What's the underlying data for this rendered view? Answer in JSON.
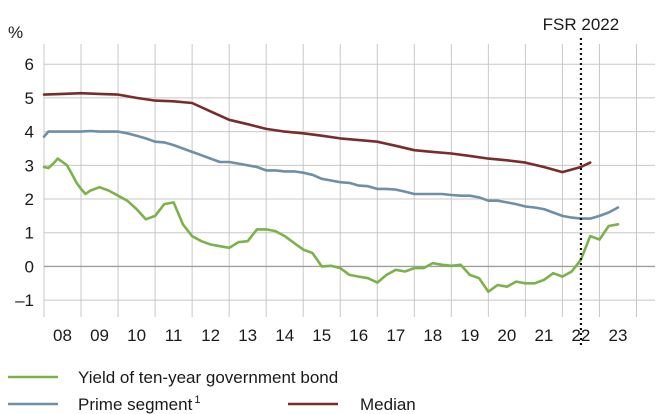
{
  "chart_data": {
    "type": "line",
    "unit_label": "%",
    "annotation": "FSR 2022",
    "annotation_x": 2022.0,
    "xlim": [
      2007.5,
      2024.0
    ],
    "ylim": [
      -1.5,
      6.6
    ],
    "yticks": [
      -1,
      0,
      1,
      2,
      3,
      4,
      5,
      6
    ],
    "ytick_labels": [
      "–1",
      "0",
      "1",
      "2",
      "3",
      "4",
      "5",
      "6"
    ],
    "xticks": [
      2008,
      2009,
      2010,
      2011,
      2012,
      2013,
      2014,
      2015,
      2016,
      2017,
      2018,
      2019,
      2020,
      2021,
      2022,
      2023
    ],
    "xtick_labels": [
      "08",
      "09",
      "10",
      "11",
      "12",
      "13",
      "14",
      "15",
      "16",
      "17",
      "18",
      "19",
      "20",
      "21",
      "22",
      "23"
    ],
    "grid": true,
    "legend_position": "bottom",
    "series": [
      {
        "key": "yield",
        "name": "Yield of ten-year government bond",
        "color": "#7bb24a",
        "x": [
          2007.5,
          2007.62,
          2007.75,
          2007.87,
          2008.0,
          2008.12,
          2008.25,
          2008.37,
          2008.5,
          2008.62,
          2008.75,
          2009.0,
          2009.25,
          2009.5,
          2009.75,
          2010.0,
          2010.25,
          2010.5,
          2010.75,
          2011.0,
          2011.25,
          2011.5,
          2011.75,
          2012.0,
          2012.25,
          2012.5,
          2012.75,
          2013.0,
          2013.25,
          2013.5,
          2013.75,
          2014.0,
          2014.25,
          2014.5,
          2014.75,
          2015.0,
          2015.25,
          2015.5,
          2015.75,
          2016.0,
          2016.25,
          2016.5,
          2016.75,
          2017.0,
          2017.25,
          2017.5,
          2017.75,
          2018.0,
          2018.25,
          2018.5,
          2018.75,
          2019.0,
          2019.25,
          2019.5,
          2019.75,
          2020.0,
          2020.25,
          2020.5,
          2020.75,
          2021.0,
          2021.25,
          2021.5,
          2021.75,
          2022.0,
          2022.25,
          2022.5,
          2022.75,
          2023.0
        ],
        "values": [
          2.95,
          2.92,
          3.05,
          3.2,
          3.1,
          3.0,
          2.75,
          2.5,
          2.3,
          2.15,
          2.25,
          2.35,
          2.25,
          2.1,
          1.95,
          1.7,
          1.4,
          1.5,
          1.85,
          1.9,
          1.25,
          0.9,
          0.75,
          0.65,
          0.6,
          0.55,
          0.72,
          0.75,
          1.1,
          1.1,
          1.05,
          0.9,
          0.7,
          0.5,
          0.4,
          0.0,
          0.02,
          -0.05,
          -0.25,
          -0.3,
          -0.35,
          -0.48,
          -0.25,
          -0.1,
          -0.15,
          -0.05,
          -0.05,
          0.1,
          0.05,
          0.02,
          0.05,
          -0.25,
          -0.35,
          -0.75,
          -0.55,
          -0.6,
          -0.45,
          -0.5,
          -0.5,
          -0.4,
          -0.2,
          -0.3,
          -0.15,
          0.2,
          0.9,
          0.8,
          1.2,
          1.25
        ]
      },
      {
        "key": "prime",
        "name": "Prime segment",
        "name_sup": "1",
        "color": "#6f8fa6",
        "x": [
          2007.5,
          2007.62,
          2008.0,
          2008.5,
          2008.75,
          2009.0,
          2009.25,
          2009.5,
          2009.75,
          2010.0,
          2010.25,
          2010.5,
          2010.75,
          2011.0,
          2011.25,
          2011.5,
          2011.75,
          2012.0,
          2012.25,
          2012.5,
          2012.75,
          2013.0,
          2013.25,
          2013.5,
          2013.75,
          2014.0,
          2014.25,
          2014.5,
          2014.75,
          2015.0,
          2015.25,
          2015.5,
          2015.75,
          2016.0,
          2016.25,
          2016.5,
          2016.75,
          2017.0,
          2017.25,
          2017.5,
          2017.75,
          2018.0,
          2018.25,
          2018.5,
          2018.75,
          2019.0,
          2019.25,
          2019.5,
          2019.75,
          2020.0,
          2020.25,
          2020.5,
          2020.75,
          2021.0,
          2021.25,
          2021.5,
          2021.75,
          2022.0,
          2022.25,
          2022.5,
          2022.75,
          2023.0
        ],
        "values": [
          3.85,
          4.0,
          4.0,
          4.0,
          4.02,
          4.0,
          4.0,
          4.0,
          3.95,
          3.88,
          3.8,
          3.7,
          3.68,
          3.6,
          3.5,
          3.4,
          3.3,
          3.2,
          3.1,
          3.1,
          3.05,
          3.0,
          2.95,
          2.85,
          2.85,
          2.82,
          2.82,
          2.78,
          2.72,
          2.6,
          2.55,
          2.5,
          2.48,
          2.4,
          2.38,
          2.3,
          2.3,
          2.28,
          2.22,
          2.15,
          2.15,
          2.15,
          2.15,
          2.12,
          2.1,
          2.1,
          2.05,
          1.95,
          1.95,
          1.9,
          1.85,
          1.78,
          1.75,
          1.7,
          1.6,
          1.5,
          1.45,
          1.42,
          1.42,
          1.5,
          1.6,
          1.75
        ]
      },
      {
        "key": "median",
        "name": "Median",
        "color": "#7a2c2c",
        "x": [
          2007.5,
          2008.0,
          2008.5,
          2009.0,
          2009.5,
          2010.0,
          2010.5,
          2011.0,
          2011.5,
          2012.0,
          2012.5,
          2013.0,
          2013.5,
          2014.0,
          2014.5,
          2015.0,
          2015.5,
          2016.0,
          2016.5,
          2017.0,
          2017.5,
          2018.0,
          2018.5,
          2019.0,
          2019.5,
          2020.0,
          2020.5,
          2021.0,
          2021.5,
          2022.0,
          2022.25
        ],
        "values": [
          5.1,
          5.12,
          5.14,
          5.12,
          5.1,
          5.0,
          4.92,
          4.9,
          4.85,
          4.6,
          4.35,
          4.22,
          4.08,
          4.0,
          3.95,
          3.88,
          3.8,
          3.75,
          3.7,
          3.58,
          3.45,
          3.4,
          3.35,
          3.28,
          3.2,
          3.15,
          3.08,
          2.95,
          2.8,
          2.95,
          3.08
        ]
      }
    ]
  }
}
